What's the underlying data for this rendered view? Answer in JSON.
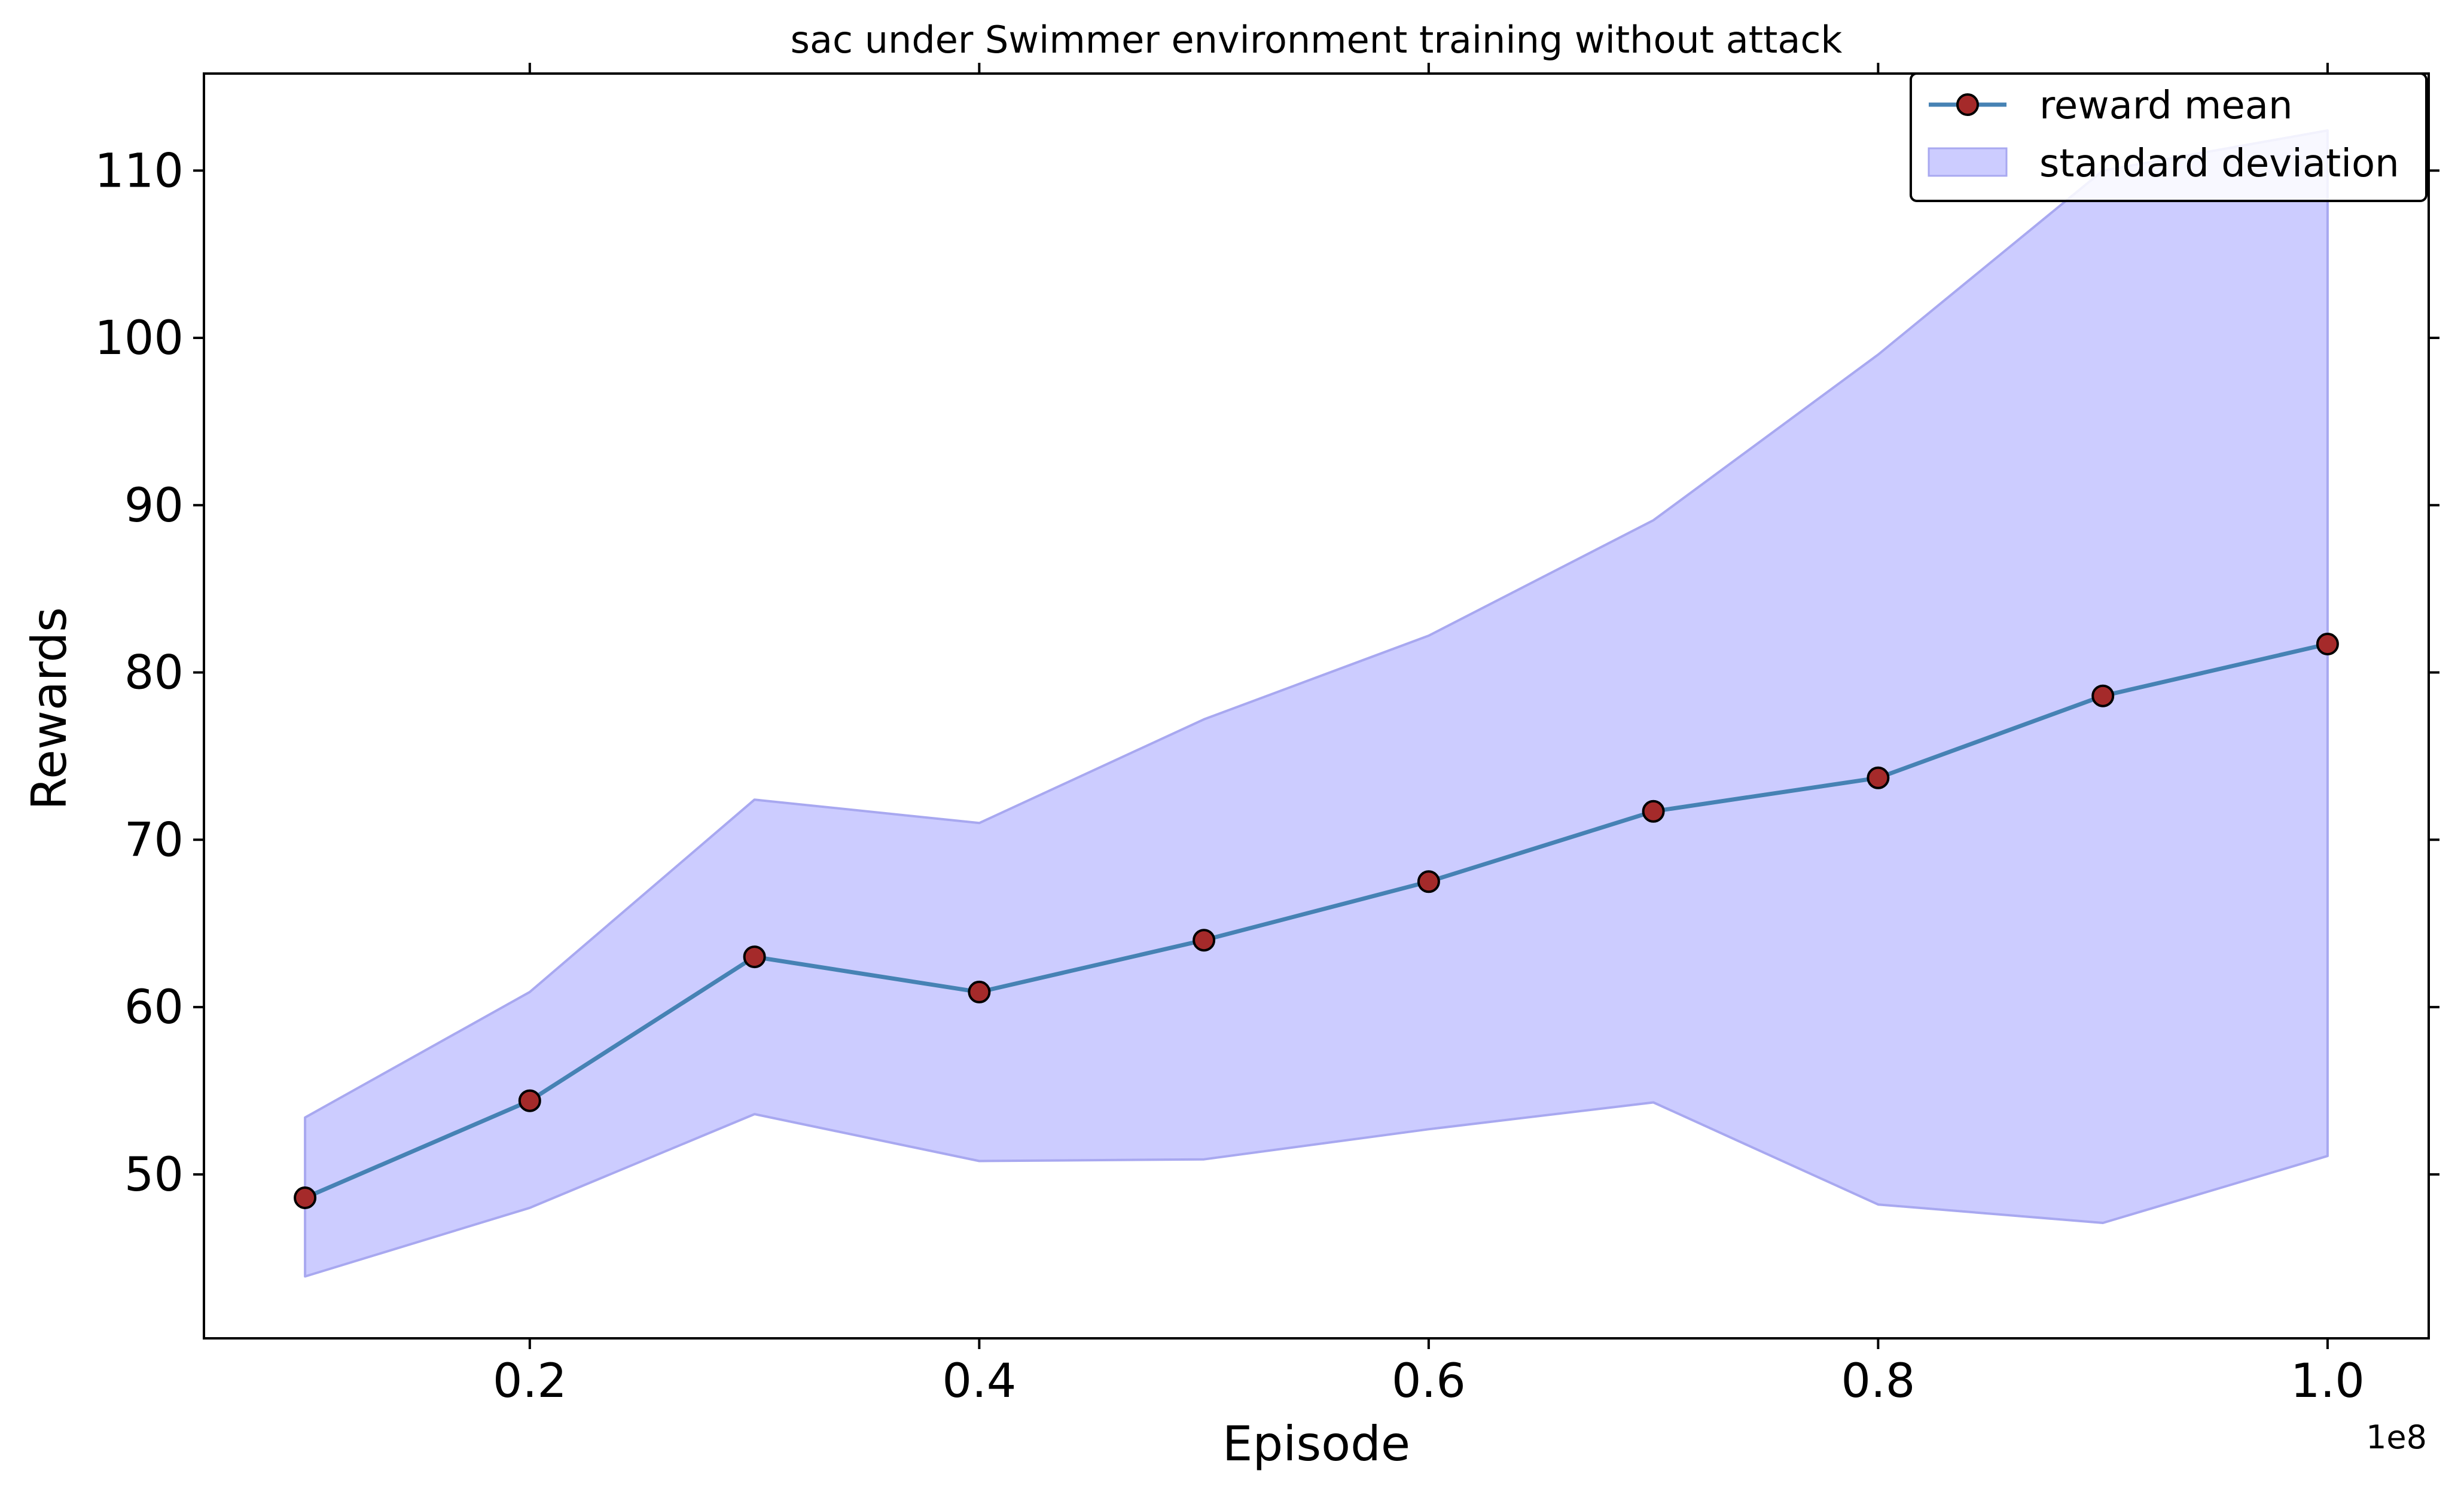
{
  "chart_data": {
    "type": "line",
    "title": "sac under Swimmer environment training without attack",
    "xlabel": "Episode",
    "ylabel": "Rewards",
    "x_offset_label": "1e8",
    "x": [
      0.1,
      0.2,
      0.3,
      0.4,
      0.5,
      0.6,
      0.7,
      0.8,
      0.9,
      1.0
    ],
    "x_ticks": [
      0.2,
      0.4,
      0.6,
      0.8,
      1.0
    ],
    "x_tick_labels": [
      "0.2",
      "0.4",
      "0.6",
      "0.8",
      "1.0"
    ],
    "y_ticks": [
      50,
      60,
      70,
      80,
      90,
      100,
      110
    ],
    "y_tick_labels": [
      "50",
      "60",
      "70",
      "80",
      "90",
      "100",
      "110"
    ],
    "xlim": [
      0.055,
      1.045
    ],
    "ylim": [
      40.2,
      115.8
    ],
    "grid": false,
    "legend_position": "top-right",
    "series": [
      {
        "name": "reward mean",
        "kind": "line",
        "color": "#4682b4",
        "marker_color": "#a52a2a",
        "values": [
          48.6,
          54.4,
          63.0,
          60.9,
          64.0,
          67.5,
          71.7,
          73.7,
          78.6,
          81.7
        ]
      },
      {
        "name": "standard deviation",
        "kind": "band",
        "color": "#ccccff",
        "edge_color": "#a8a8f0",
        "upper": [
          53.4,
          60.9,
          72.4,
          71.0,
          77.2,
          82.2,
          89.1,
          99.0,
          110.0,
          112.4
        ],
        "lower": [
          43.9,
          48.0,
          53.6,
          50.8,
          50.9,
          52.7,
          54.3,
          48.2,
          47.1,
          51.1
        ]
      }
    ]
  }
}
